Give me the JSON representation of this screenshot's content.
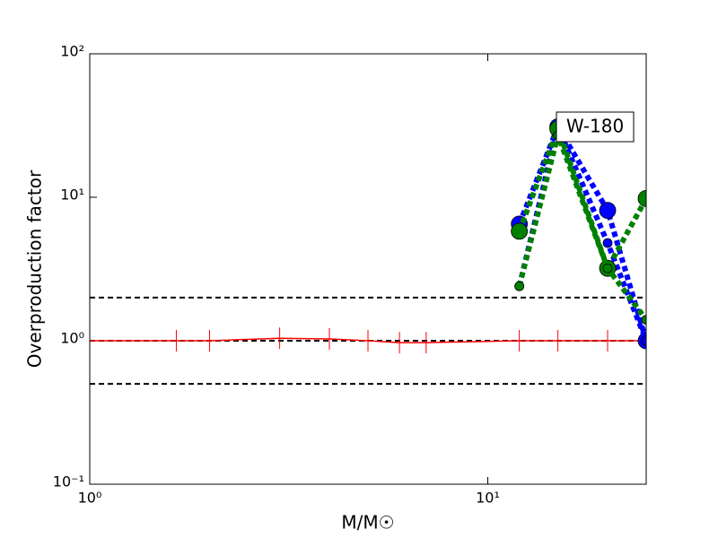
{
  "chart_data": {
    "type": "line",
    "xscale": "log",
    "yscale": "log",
    "xlabel": "M/M☉",
    "ylabel": "Overproduction factor",
    "xlim": [
      1,
      25
    ],
    "ylim": [
      0.1,
      100
    ],
    "xticks": [
      {
        "value": 1,
        "label": "10⁰"
      },
      {
        "value": 10,
        "label": "10¹"
      }
    ],
    "yticks": [
      {
        "value": 0.1,
        "label": "10⁻¹"
      },
      {
        "value": 1,
        "label": "10⁰"
      },
      {
        "value": 10,
        "label": "10¹"
      },
      {
        "value": 100,
        "label": "10²"
      }
    ],
    "hlines": [
      2,
      1,
      0.5
    ],
    "hline_color": "#000000",
    "annotation": "W-180",
    "series": [
      {
        "color": "#ff0000",
        "linestyle": "solid",
        "marker": "plus",
        "x": [
          1,
          1.65,
          2,
          3,
          4,
          5,
          6,
          7,
          12,
          15,
          20,
          25
        ],
        "values": [
          1,
          1,
          1,
          1.04,
          1.03,
          1.0,
          0.97,
          0.97,
          1,
          1,
          1,
          1
        ]
      },
      {
        "color": "#0000ff",
        "linestyle": "dotted",
        "marker": "circle",
        "marker_size": 9,
        "x": [
          12,
          15,
          20,
          25
        ],
        "values": [
          6.5,
          31,
          8.1,
          1.0
        ]
      },
      {
        "color": "#0000ff",
        "linestyle": "dotted",
        "marker": "circle",
        "marker_size": 5,
        "x": [
          12,
          15,
          20,
          25
        ],
        "values": [
          2.4,
          31,
          4.8,
          1.0
        ]
      },
      {
        "color": "#008000",
        "linestyle": "dotted",
        "marker": "circle",
        "marker_size": 9,
        "x": [
          12,
          15,
          20,
          25
        ],
        "values": [
          5.8,
          30,
          3.2,
          9.8
        ]
      },
      {
        "color": "#008000",
        "linestyle": "dotted",
        "marker": "circle",
        "marker_size": 5,
        "x": [
          12,
          15,
          20,
          25
        ],
        "values": [
          2.4,
          27,
          3.2,
          1.4
        ]
      }
    ]
  }
}
